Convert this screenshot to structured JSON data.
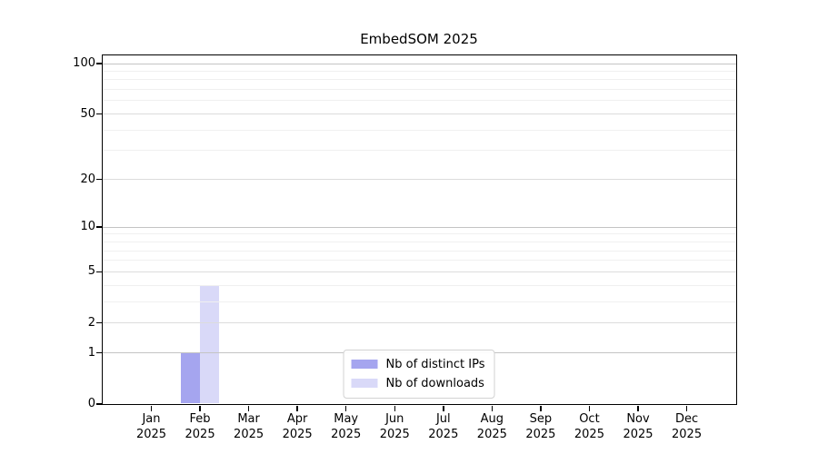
{
  "chart_data": {
    "type": "bar",
    "title": "EmbedSOM 2025",
    "categories": [
      "Jan 2025",
      "Feb 2025",
      "Mar 2025",
      "Apr 2025",
      "May 2025",
      "Jun 2025",
      "Jul 2025",
      "Aug 2025",
      "Sep 2025",
      "Oct 2025",
      "Nov 2025",
      "Dec 2025"
    ],
    "series": [
      {
        "name": "Nb of distinct IPs",
        "color": "#a5a5ef",
        "values": [
          0,
          1,
          0,
          0,
          0,
          0,
          0,
          0,
          0,
          0,
          0,
          0
        ]
      },
      {
        "name": "Nb of downloads",
        "color": "#d9d9f8",
        "values": [
          0,
          4,
          0,
          0,
          0,
          0,
          0,
          0,
          0,
          0,
          0,
          0
        ]
      }
    ],
    "yscale": "log1p",
    "ylim": [
      0,
      100
    ],
    "yticks": [
      0,
      1,
      2,
      5,
      10,
      20,
      50,
      100
    ],
    "ytick_emphasis": [
      1,
      10,
      100
    ],
    "minor_gridlines": [
      3,
      4,
      6,
      7,
      8,
      9,
      30,
      40,
      60,
      70,
      80,
      90
    ],
    "grid": "horizontal",
    "legend_position": "bottom-center",
    "legend": [
      "Nb of distinct IPs",
      "Nb of downloads"
    ]
  }
}
